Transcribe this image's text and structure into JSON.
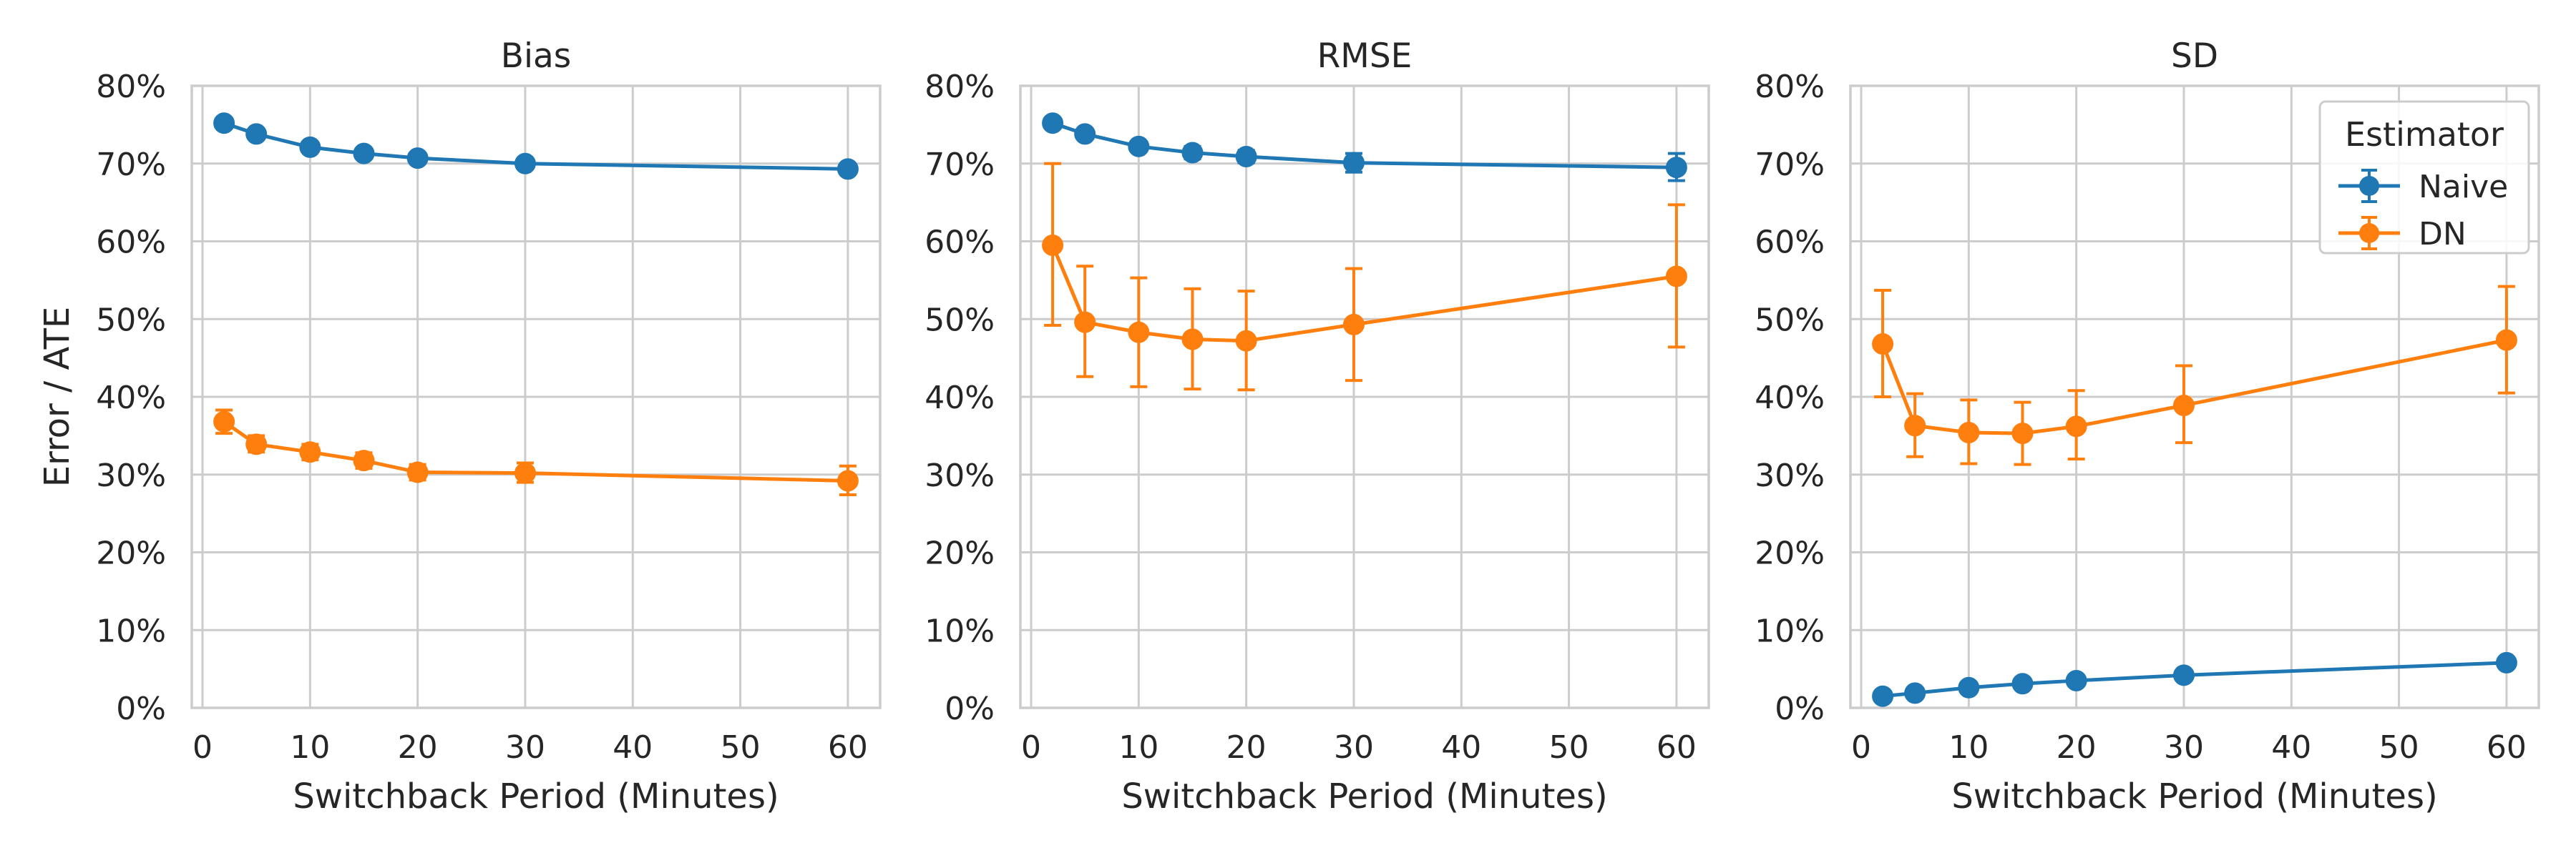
{
  "chart_data": [
    {
      "type": "line",
      "title": "Bias",
      "xlabel": "Switchback Period (Minutes)",
      "ylabel": "Error / ATE",
      "xlim": [
        -1,
        63
      ],
      "ylim": [
        0,
        80
      ],
      "xticks": [
        0,
        10,
        20,
        30,
        40,
        50,
        60
      ],
      "xtick_labels": [
        "0",
        "10",
        "20",
        "30",
        "40",
        "50",
        "60"
      ],
      "yticks": [
        0,
        10,
        20,
        30,
        40,
        50,
        60,
        70,
        80
      ],
      "ytick_labels": [
        "0%",
        "10%",
        "20%",
        "30%",
        "40%",
        "50%",
        "60%",
        "70%",
        "80%"
      ],
      "grid": true,
      "x": [
        2,
        5,
        10,
        15,
        20,
        30,
        60
      ],
      "series": [
        {
          "name": "Naive",
          "color": "#1f77b4",
          "values": [
            75.2,
            73.8,
            72.1,
            71.3,
            70.7,
            70.0,
            69.3
          ],
          "err_low": [
            74.9,
            73.5,
            71.8,
            71.0,
            70.4,
            69.7,
            68.9
          ],
          "err_high": [
            75.5,
            74.1,
            72.4,
            71.6,
            71.0,
            70.3,
            69.7
          ]
        },
        {
          "name": "DN",
          "color": "#ff7f0e",
          "values": [
            36.8,
            33.9,
            32.9,
            31.8,
            30.3,
            30.2,
            29.2
          ],
          "err_low": [
            35.3,
            32.9,
            31.9,
            30.8,
            29.3,
            29.0,
            27.4
          ],
          "err_high": [
            38.3,
            35.0,
            33.9,
            32.8,
            31.3,
            31.5,
            31.1
          ]
        }
      ]
    },
    {
      "type": "line",
      "title": "RMSE",
      "xlabel": "Switchback Period (Minutes)",
      "ylabel": "",
      "xlim": [
        -1,
        63
      ],
      "ylim": [
        0,
        80
      ],
      "xticks": [
        0,
        10,
        20,
        30,
        40,
        50,
        60
      ],
      "xtick_labels": [
        "0",
        "10",
        "20",
        "30",
        "40",
        "50",
        "60"
      ],
      "yticks": [
        0,
        10,
        20,
        30,
        40,
        50,
        60,
        70,
        80
      ],
      "ytick_labels": [
        "0%",
        "10%",
        "20%",
        "30%",
        "40%",
        "50%",
        "60%",
        "70%",
        "80%"
      ],
      "grid": true,
      "x": [
        2,
        5,
        10,
        15,
        20,
        30,
        60
      ],
      "series": [
        {
          "name": "Naive",
          "color": "#1f77b4",
          "values": [
            75.2,
            73.8,
            72.2,
            71.4,
            70.9,
            70.1,
            69.5
          ],
          "err_low": [
            74.8,
            73.4,
            71.6,
            70.6,
            70.1,
            68.9,
            67.8
          ],
          "err_high": [
            75.6,
            74.2,
            72.8,
            72.2,
            71.7,
            71.3,
            71.3
          ]
        },
        {
          "name": "DN",
          "color": "#ff7f0e",
          "values": [
            59.5,
            49.6,
            48.3,
            47.4,
            47.2,
            49.3,
            55.5
          ],
          "err_low": [
            49.2,
            42.6,
            41.3,
            41.0,
            40.9,
            42.1,
            46.4
          ],
          "err_high": [
            70.0,
            56.8,
            55.3,
            53.9,
            53.6,
            56.5,
            64.7
          ]
        }
      ]
    },
    {
      "type": "line",
      "title": "SD",
      "xlabel": "Switchback Period (Minutes)",
      "ylabel": "",
      "xlim": [
        -1,
        63
      ],
      "ylim": [
        0,
        80
      ],
      "xticks": [
        0,
        10,
        20,
        30,
        40,
        50,
        60
      ],
      "xtick_labels": [
        "0",
        "10",
        "20",
        "30",
        "40",
        "50",
        "60"
      ],
      "yticks": [
        0,
        10,
        20,
        30,
        40,
        50,
        60,
        70,
        80
      ],
      "ytick_labels": [
        "0%",
        "10%",
        "20%",
        "30%",
        "40%",
        "50%",
        "60%",
        "70%",
        "80%"
      ],
      "grid": true,
      "legend": {
        "title": "Estimator",
        "placement": "top-right"
      },
      "x": [
        2,
        5,
        10,
        15,
        20,
        30,
        60
      ],
      "series": [
        {
          "name": "Naive",
          "color": "#1f77b4",
          "values": [
            1.5,
            1.9,
            2.6,
            3.1,
            3.5,
            4.2,
            5.8
          ],
          "err_low": [
            1.4,
            1.8,
            2.5,
            3.0,
            3.4,
            4.1,
            5.6
          ],
          "err_high": [
            1.6,
            2.0,
            2.7,
            3.2,
            3.6,
            4.3,
            6.0
          ]
        },
        {
          "name": "DN",
          "color": "#ff7f0e",
          "values": [
            46.8,
            36.3,
            35.4,
            35.3,
            36.2,
            38.9,
            47.3
          ],
          "err_low": [
            40.0,
            32.3,
            31.4,
            31.3,
            32.0,
            34.1,
            40.5
          ],
          "err_high": [
            53.7,
            40.4,
            39.6,
            39.3,
            40.8,
            44.0,
            54.2
          ]
        }
      ]
    }
  ]
}
